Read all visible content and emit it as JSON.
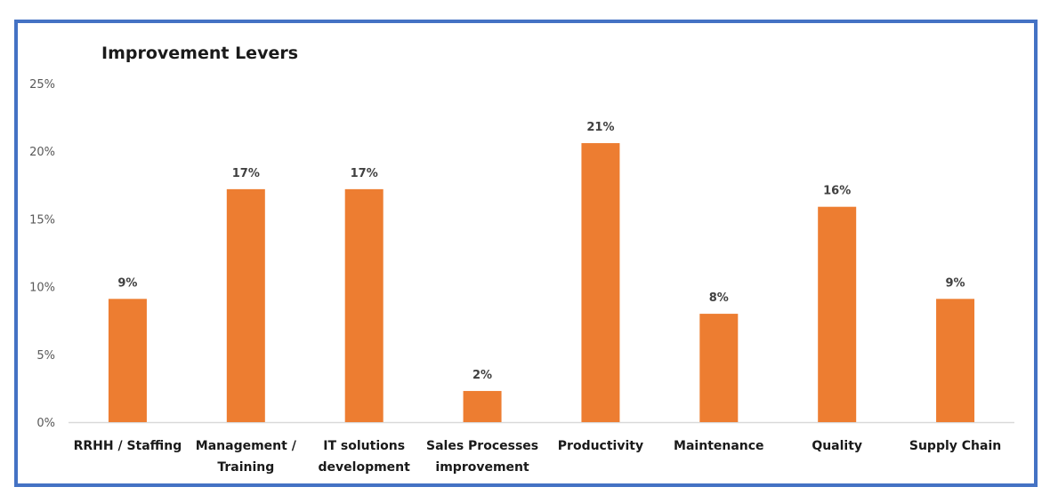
{
  "chart_data": {
    "type": "bar",
    "title": "Improvement Levers",
    "xlabel": "",
    "ylabel": "",
    "ylim": [
      0,
      25
    ],
    "y_ticks": [
      "0%",
      "5%",
      "10%",
      "15%",
      "20%",
      "25%"
    ],
    "y_tick_values": [
      0,
      5,
      10,
      15,
      20,
      25
    ],
    "grid": false,
    "legend": "none",
    "categories": [
      [
        "RRHH / Staffing"
      ],
      [
        "Management /",
        "Training"
      ],
      [
        "IT solutions",
        "development"
      ],
      [
        "Sales Processes",
        "improvement"
      ],
      [
        "Productivity"
      ],
      [
        "Maintenance"
      ],
      [
        "Quality"
      ],
      [
        "Supply Chain"
      ]
    ],
    "values": [
      9.1,
      17.2,
      17.2,
      2.3,
      20.6,
      8.0,
      15.9,
      9.1
    ],
    "data_labels": [
      "9%",
      "17%",
      "17%",
      "2%",
      "21%",
      "8%",
      "16%",
      "9%"
    ],
    "bar_color": "#ED7D31",
    "axis_color": "#D9D9D9",
    "frame_color": "#4472C4"
  }
}
